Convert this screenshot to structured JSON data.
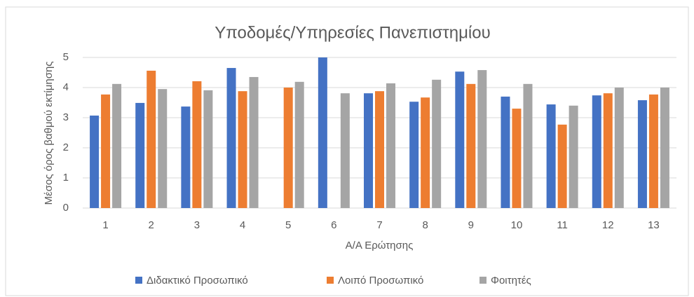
{
  "chart_data": {
    "type": "bar",
    "title": "Υποδομές/Υπηρεσίες Πανεπιστημίου",
    "xlabel": "Α/Α Ερώτησης",
    "ylabel": "Μέσος όρος βαθμού εκτίμησης",
    "categories": [
      "1",
      "2",
      "3",
      "4",
      "5",
      "6",
      "7",
      "8",
      "9",
      "10",
      "11",
      "12",
      "13"
    ],
    "series": [
      {
        "name": "Διδακτικό Προσωπικό",
        "color": "#4472c4",
        "values": [
          3.07,
          3.49,
          3.37,
          4.65,
          null,
          5.0,
          3.81,
          3.53,
          4.53,
          3.7,
          3.44,
          3.74,
          3.58
        ]
      },
      {
        "name": "Λοιπό Προσωπικό",
        "color": "#ed7d31",
        "values": [
          3.77,
          4.56,
          4.21,
          3.88,
          4.0,
          null,
          3.88,
          3.67,
          4.12,
          3.3,
          2.77,
          3.81,
          3.77
        ]
      },
      {
        "name": "Φοιτητές",
        "color": "#a5a5a5",
        "values": [
          4.12,
          3.95,
          3.91,
          4.35,
          4.19,
          3.81,
          4.14,
          4.26,
          4.58,
          4.12,
          3.4,
          4.0,
          4.0
        ]
      }
    ],
    "ylim": [
      0,
      5
    ],
    "yticks": [
      0,
      1,
      2,
      3,
      4,
      5
    ],
    "grid": true,
    "legend": "bottom"
  }
}
